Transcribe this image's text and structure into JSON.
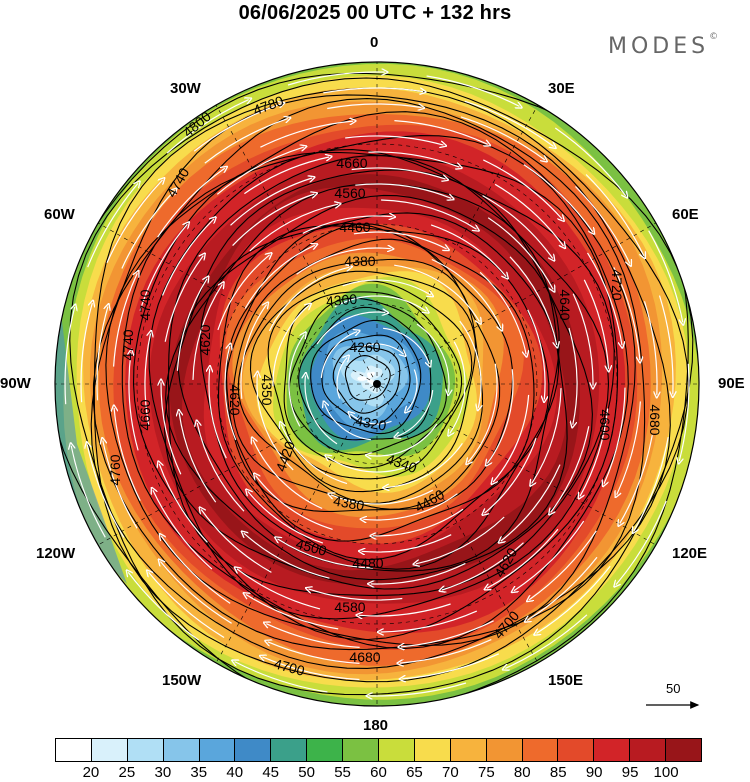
{
  "header": {
    "title": "06/06/2025  00 UTC  + 132 hrs"
  },
  "brand": {
    "logo_text": "MODES",
    "mark": "©"
  },
  "longitude_labels": [
    "0",
    "30E",
    "60E",
    "90E",
    "120E",
    "150E",
    "180",
    "150W",
    "120W",
    "90W",
    "60W",
    "30W"
  ],
  "contour_labels": [
    "4800",
    "4780",
    "4740",
    "4660",
    "4560",
    "4460",
    "4380",
    "4300",
    "4260",
    "4350",
    "4420",
    "4320",
    "4340",
    "4380",
    "4460",
    "4480",
    "4500",
    "4580",
    "4620",
    "4680",
    "4700",
    "4600",
    "4680",
    "4640",
    "4720",
    "4740",
    "4700",
    "4620",
    "4740",
    "4760",
    "4620",
    "4660",
    "4740",
    "4700"
  ],
  "scale_vector": {
    "label": "50"
  },
  "colorbar": {
    "colors": [
      "#ffffff",
      "#d9f1fb",
      "#b0dff5",
      "#86c5ea",
      "#5aa6dc",
      "#3f8ac7",
      "#3ba08a",
      "#3db34a",
      "#7bc142",
      "#c9dd3b",
      "#f8dc4c",
      "#f7b33d",
      "#f29533",
      "#ee6a2c",
      "#e34a2a",
      "#d22428",
      "#b81b21",
      "#981519"
    ],
    "ticks": [
      "20",
      "25",
      "30",
      "35",
      "40",
      "45",
      "50",
      "55",
      "60",
      "65",
      "70",
      "75",
      "80",
      "85",
      "90",
      "95",
      "100"
    ]
  },
  "legend_semantics": {
    "field": "wind speed",
    "lines": "geopotential height"
  }
}
